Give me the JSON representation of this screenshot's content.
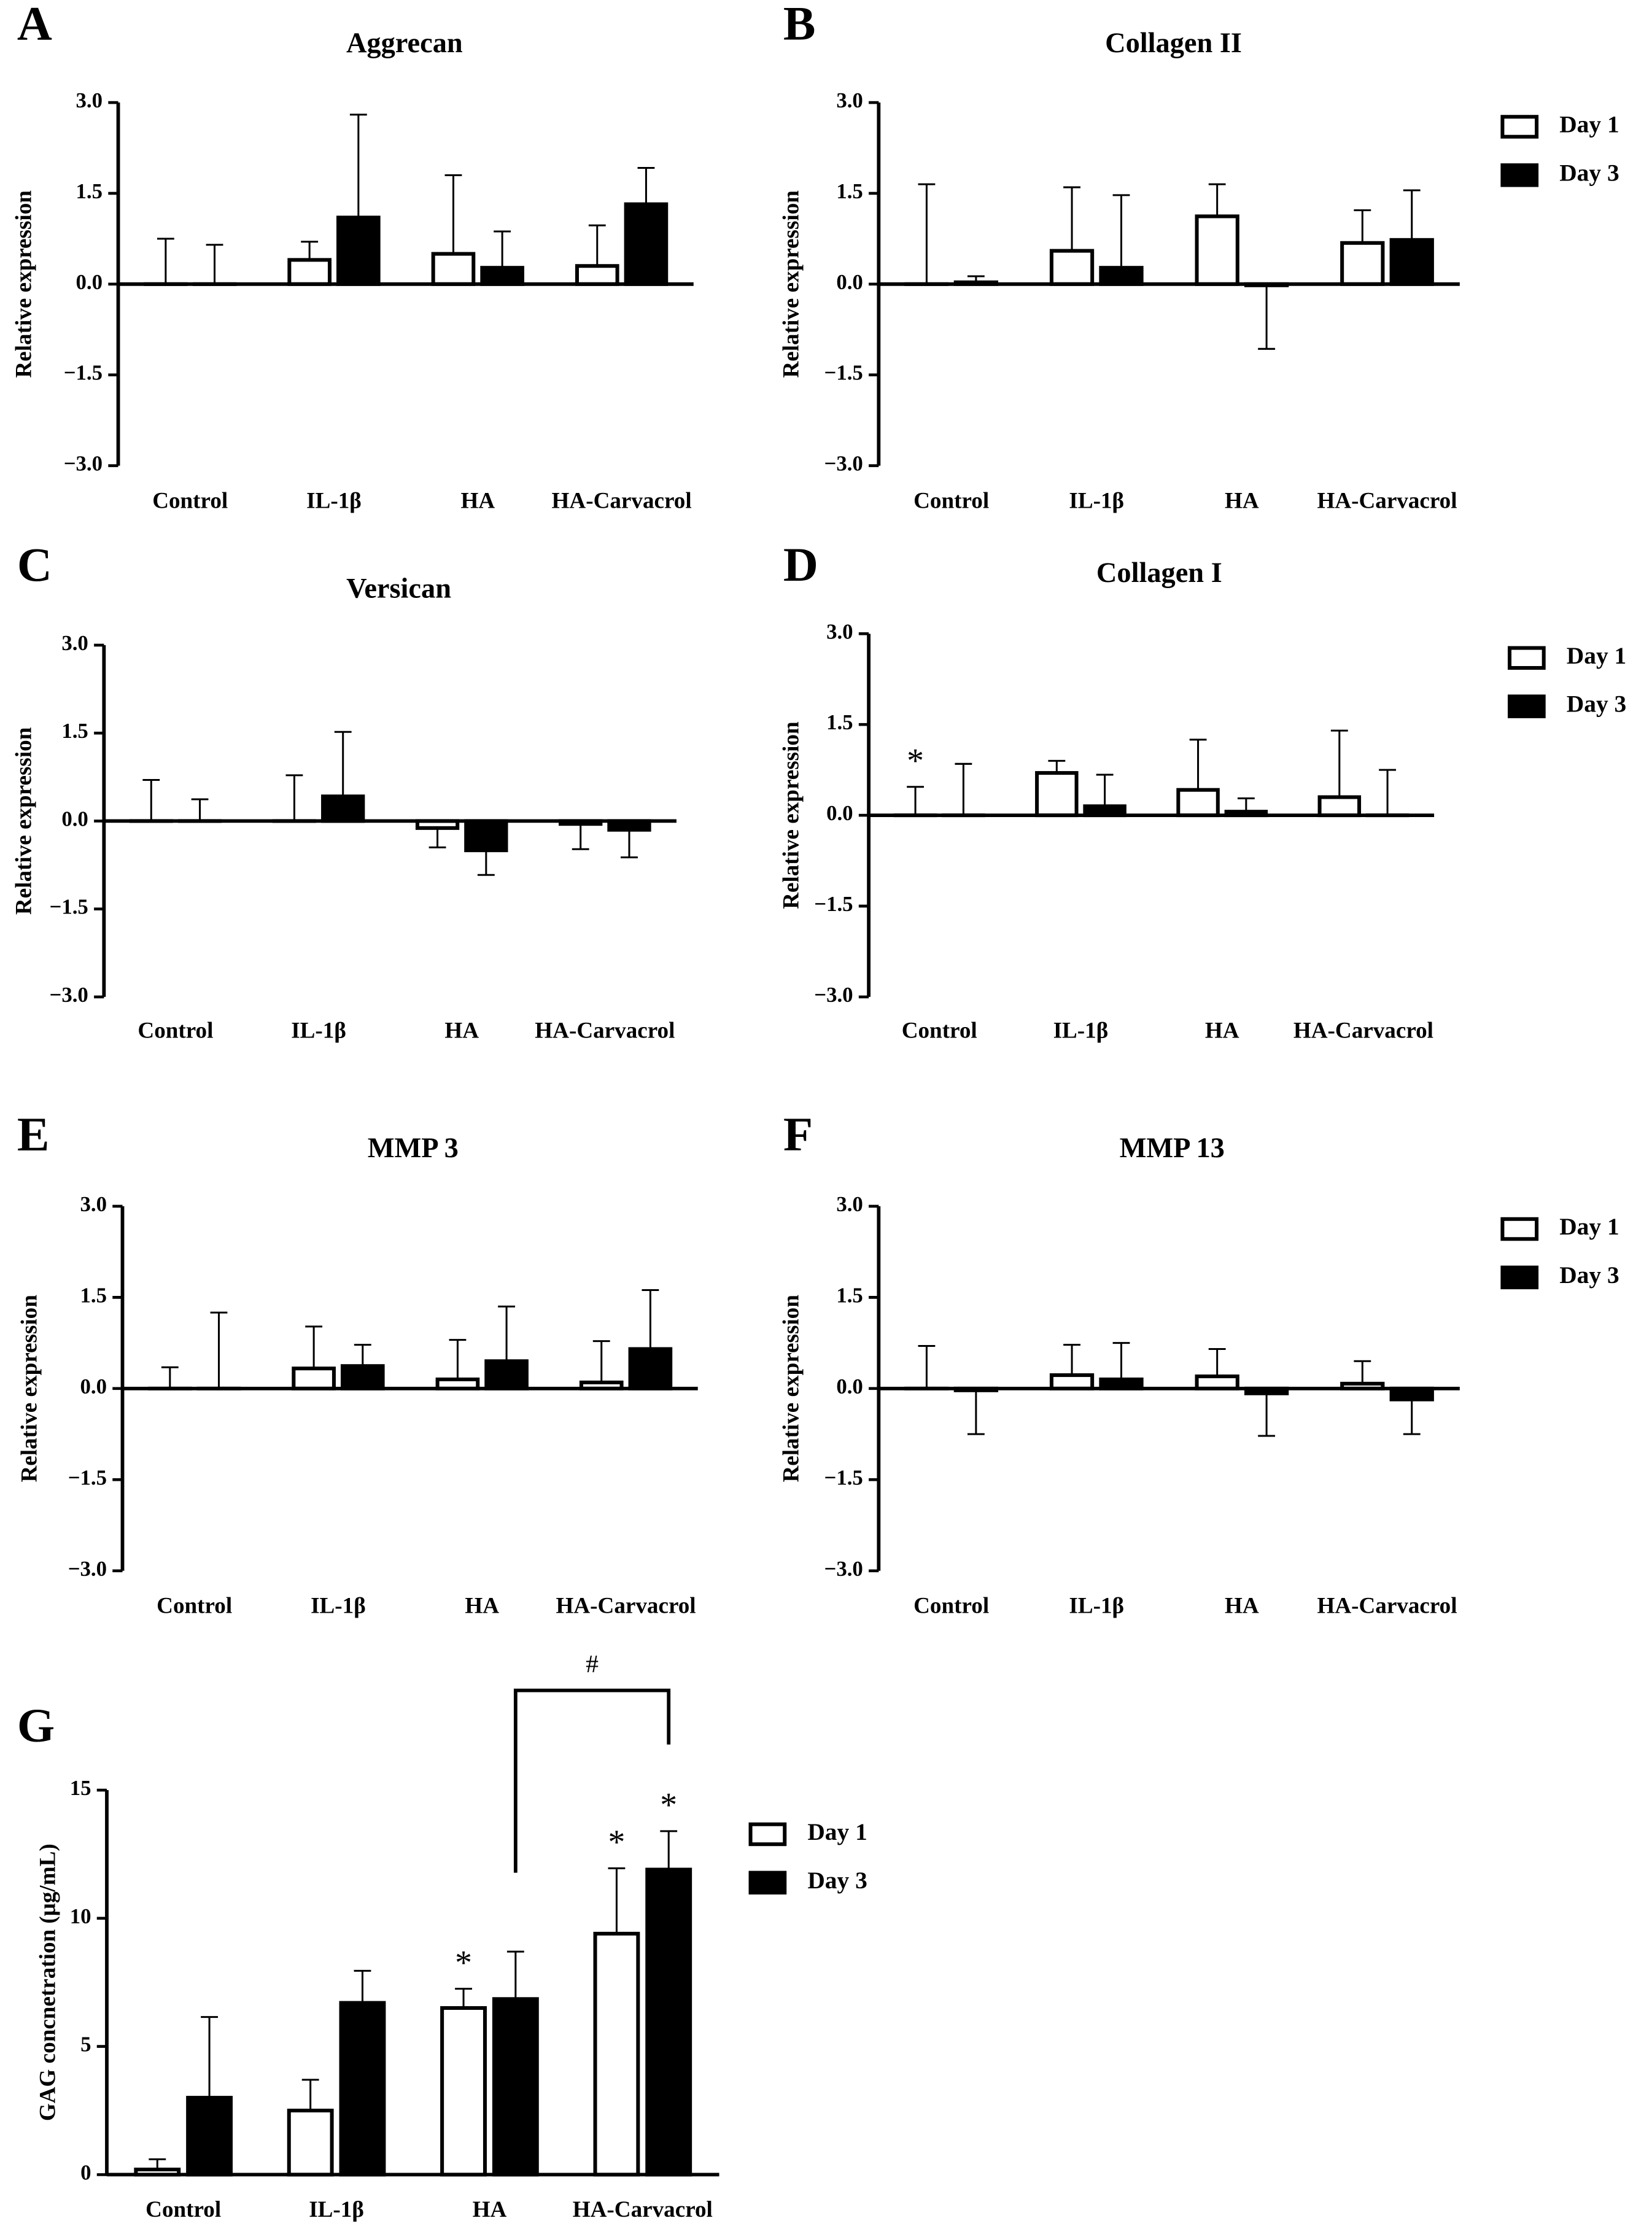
{
  "chart_data": [
    {
      "type": "bar",
      "panel": "A",
      "title": "Aggrecan",
      "y_label": "Relative expression",
      "categories": [
        "Control",
        "IL-1β",
        "HA",
        "HA-Carvacrol"
      ],
      "series": [
        {
          "color": "#ffffff",
          "values": [
            0,
            0.4,
            0.5,
            0.3
          ],
          "errors": [
            0.75,
            0.3,
            1.3,
            0.67
          ]
        },
        {
          "color": "#000000",
          "values": [
            0,
            1.1,
            0.27,
            1.32
          ],
          "errors": [
            0.65,
            1.7,
            0.6,
            0.6
          ]
        }
      ],
      "ylim": [
        -3,
        3
      ],
      "yticks": [
        {
          "value": -3,
          "label": "−3.0"
        },
        {
          "value": -1.5,
          "label": "−1.5"
        },
        {
          "value": 0,
          "label": "0.0"
        },
        {
          "value": 1.5,
          "label": "1.5"
        },
        {
          "value": 3,
          "label": "3.0"
        }
      ],
      "legend": false
    },
    {
      "type": "bar",
      "panel": "B",
      "title": "Collagen II",
      "y_label": "Relative expression",
      "categories": [
        "Control",
        "IL-1β",
        "HA",
        "HA-Carvacrol"
      ],
      "series": [
        {
          "name": "Day 1",
          "color": "#ffffff",
          "values": [
            0,
            0.55,
            1.12,
            0.68
          ],
          "errors": [
            1.65,
            1.05,
            0.53,
            0.54
          ]
        },
        {
          "name": "Day 3",
          "color": "#000000",
          "values": [
            0.03,
            0.27,
            -0.02,
            0.73
          ],
          "errors": [
            0.1,
            1.2,
            1.05,
            0.82
          ]
        }
      ],
      "ylim": [
        -3,
        3
      ],
      "yticks": [
        {
          "value": -3,
          "label": "−3.0"
        },
        {
          "value": -1.5,
          "label": "−1.5"
        },
        {
          "value": 0,
          "label": "0.0"
        },
        {
          "value": 1.5,
          "label": "1.5"
        },
        {
          "value": 3,
          "label": "3.0"
        }
      ],
      "legend": true
    },
    {
      "type": "bar",
      "panel": "C",
      "title": "Versican",
      "y_label": "Relative expression",
      "categories": [
        "Control",
        "IL-1β",
        "HA",
        "HA-Carvacrol"
      ],
      "series": [
        {
          "color": "#ffffff",
          "values": [
            0,
            0,
            -0.12,
            -0.05
          ],
          "errors": [
            0.7,
            0.78,
            0.33,
            0.43
          ]
        },
        {
          "color": "#000000",
          "values": [
            0,
            0.42,
            -0.5,
            -0.15
          ],
          "errors": [
            0.37,
            1.1,
            0.42,
            0.47
          ]
        }
      ],
      "ylim": [
        -3,
        3
      ],
      "yticks": [
        {
          "value": -3,
          "label": "−3.0"
        },
        {
          "value": -1.5,
          "label": "−1.5"
        },
        {
          "value": 0,
          "label": "0.0"
        },
        {
          "value": 1.5,
          "label": "1.5"
        },
        {
          "value": 3,
          "label": "3.0"
        }
      ],
      "legend": false
    },
    {
      "type": "bar",
      "panel": "D",
      "title": "Collagen I",
      "y_label": "Relative expression",
      "categories": [
        "Control",
        "IL-1β",
        "HA",
        "HA-Carvacrol"
      ],
      "series": [
        {
          "name": "Day 1",
          "color": "#ffffff",
          "values": [
            0,
            0.7,
            0.42,
            0.3
          ],
          "errors": [
            0.47,
            0.2,
            0.83,
            1.1
          ],
          "annotations": [
            "*",
            null,
            null,
            null
          ]
        },
        {
          "name": "Day 3",
          "color": "#000000",
          "values": [
            0,
            0.15,
            0.06,
            0
          ],
          "errors": [
            0.85,
            0.52,
            0.22,
            0.75
          ]
        }
      ],
      "ylim": [
        -3,
        3
      ],
      "yticks": [
        {
          "value": -3,
          "label": "−3.0"
        },
        {
          "value": -1.5,
          "label": "−1.5"
        },
        {
          "value": 0,
          "label": "0.0"
        },
        {
          "value": 1.5,
          "label": "1.5"
        },
        {
          "value": 3,
          "label": "3.0"
        }
      ],
      "legend": true
    },
    {
      "type": "bar",
      "panel": "E",
      "title": "MMP 3",
      "y_label": "Relative expression",
      "categories": [
        "Control",
        "IL-1β",
        "HA",
        "HA-Carvacrol"
      ],
      "series": [
        {
          "color": "#ffffff",
          "values": [
            0,
            0.33,
            0.15,
            0.1
          ],
          "errors": [
            0.35,
            0.69,
            0.65,
            0.68
          ]
        },
        {
          "color": "#000000",
          "values": [
            0,
            0.37,
            0.45,
            0.65
          ],
          "errors": [
            1.25,
            0.35,
            0.9,
            0.97
          ]
        }
      ],
      "ylim": [
        -3,
        3
      ],
      "yticks": [
        {
          "value": -3,
          "label": "−3.0"
        },
        {
          "value": -1.5,
          "label": "−1.5"
        },
        {
          "value": 0,
          "label": "0.0"
        },
        {
          "value": 1.5,
          "label": "1.5"
        },
        {
          "value": 3,
          "label": "3.0"
        }
      ],
      "legend": false
    },
    {
      "type": "bar",
      "panel": "F",
      "title": "MMP 13",
      "y_label": "Relative expression",
      "categories": [
        "Control",
        "IL-1β",
        "HA",
        "HA-Carvacrol"
      ],
      "series": [
        {
          "name": "Day 1",
          "color": "#ffffff",
          "values": [
            0,
            0.22,
            0.2,
            0.08
          ],
          "errors": [
            0.7,
            0.5,
            0.45,
            0.37
          ]
        },
        {
          "name": "Day 3",
          "color": "#000000",
          "values": [
            -0.03,
            0.15,
            -0.08,
            -0.18
          ],
          "errors": [
            0.72,
            0.6,
            0.7,
            0.57
          ]
        }
      ],
      "ylim": [
        -3,
        3
      ],
      "yticks": [
        {
          "value": -3,
          "label": "−3.0"
        },
        {
          "value": -1.5,
          "label": "−1.5"
        },
        {
          "value": 0,
          "label": "0.0"
        },
        {
          "value": 1.5,
          "label": "1.5"
        },
        {
          "value": 3,
          "label": "3.0"
        }
      ],
      "legend": true
    },
    {
      "type": "bar",
      "panel": "G",
      "y_label": "GAG concnetration (μg/mL)",
      "categories": [
        "Control",
        "IL-1β",
        "HA",
        "HA-Carvacrol"
      ],
      "series": [
        {
          "name": "Day 1",
          "color": "#ffffff",
          "values": [
            0.2,
            2.5,
            6.5,
            9.4
          ],
          "errors": [
            0.4,
            1.2,
            0.75,
            2.55
          ],
          "annotations": [
            null,
            null,
            "*",
            "*"
          ]
        },
        {
          "name": "Day 3",
          "color": "#000000",
          "values": [
            3.0,
            6.7,
            6.85,
            11.9
          ],
          "errors": [
            3.15,
            1.25,
            1.85,
            1.5
          ],
          "annotations": [
            null,
            null,
            null,
            "*"
          ]
        }
      ],
      "ylim": [
        0,
        15
      ],
      "yticks": [
        0,
        5,
        10,
        15
      ],
      "bracket_label": "#",
      "legend": true
    }
  ]
}
